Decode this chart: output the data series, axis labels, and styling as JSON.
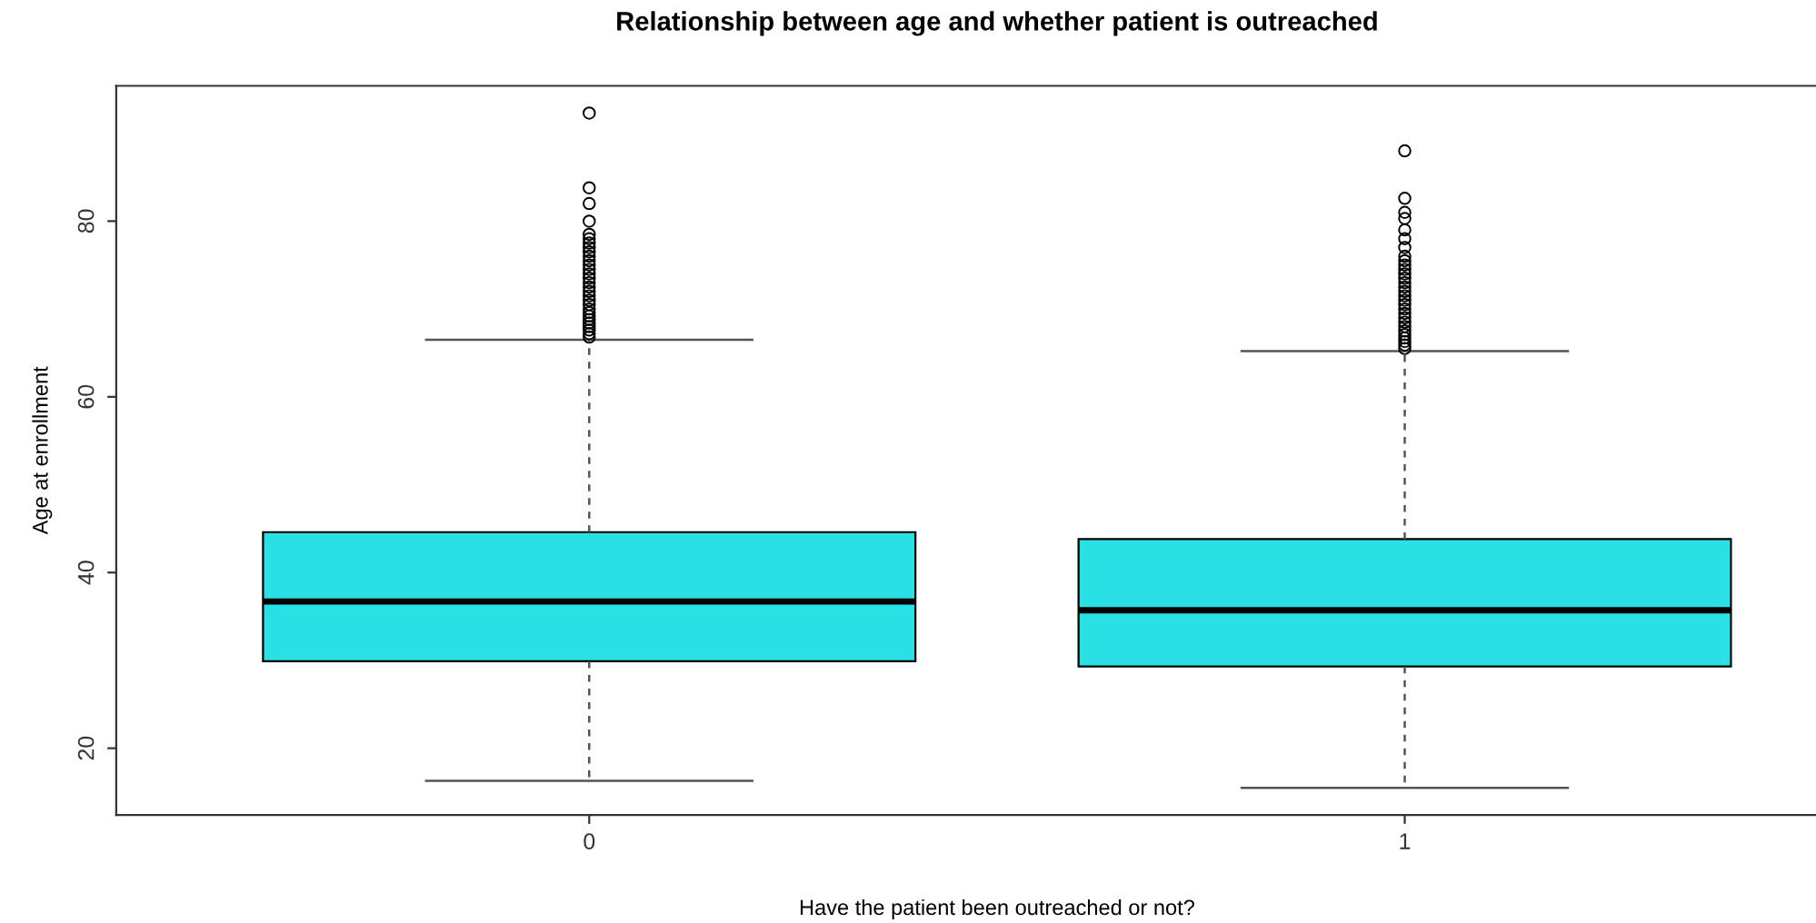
{
  "chart_data": {
    "type": "box",
    "title": "Relationship between age and whether patient is outreached",
    "xlabel": "Have the patient been outreached or not?",
    "ylabel": "Age at enrollment",
    "categories": [
      "0",
      "1"
    ],
    "boxes": [
      {
        "low": 16.3,
        "q1": 29.9,
        "median": 36.7,
        "q3": 44.6,
        "high": 66.5,
        "outliers": [
          66.8,
          67.2,
          67.6,
          68.0,
          68.4,
          68.8,
          69.2,
          69.6,
          70.0,
          70.5,
          71.0,
          71.5,
          72.0,
          72.5,
          73.0,
          73.5,
          74.0,
          74.5,
          75.0,
          75.5,
          76.0,
          76.5,
          77.0,
          77.5,
          78.0,
          78.5,
          80.0,
          82.0,
          83.8,
          92.3
        ]
      },
      {
        "low": 15.5,
        "q1": 29.3,
        "median": 35.7,
        "q3": 43.8,
        "high": 65.2,
        "outliers": [
          65.5,
          65.9,
          66.3,
          66.7,
          67.1,
          67.5,
          68.0,
          68.5,
          69.0,
          69.5,
          70.0,
          70.5,
          71.0,
          71.5,
          72.0,
          72.5,
          73.0,
          73.5,
          74.0,
          74.5,
          75.0,
          75.5,
          76.0,
          77.0,
          78.0,
          79.0,
          80.3,
          81.0,
          82.6,
          88.0
        ]
      }
    ],
    "color": "#29e0e4",
    "ylim": [
      12.4,
      95.4
    ],
    "yticks": [
      20,
      40,
      60,
      80
    ],
    "grid": false
  }
}
